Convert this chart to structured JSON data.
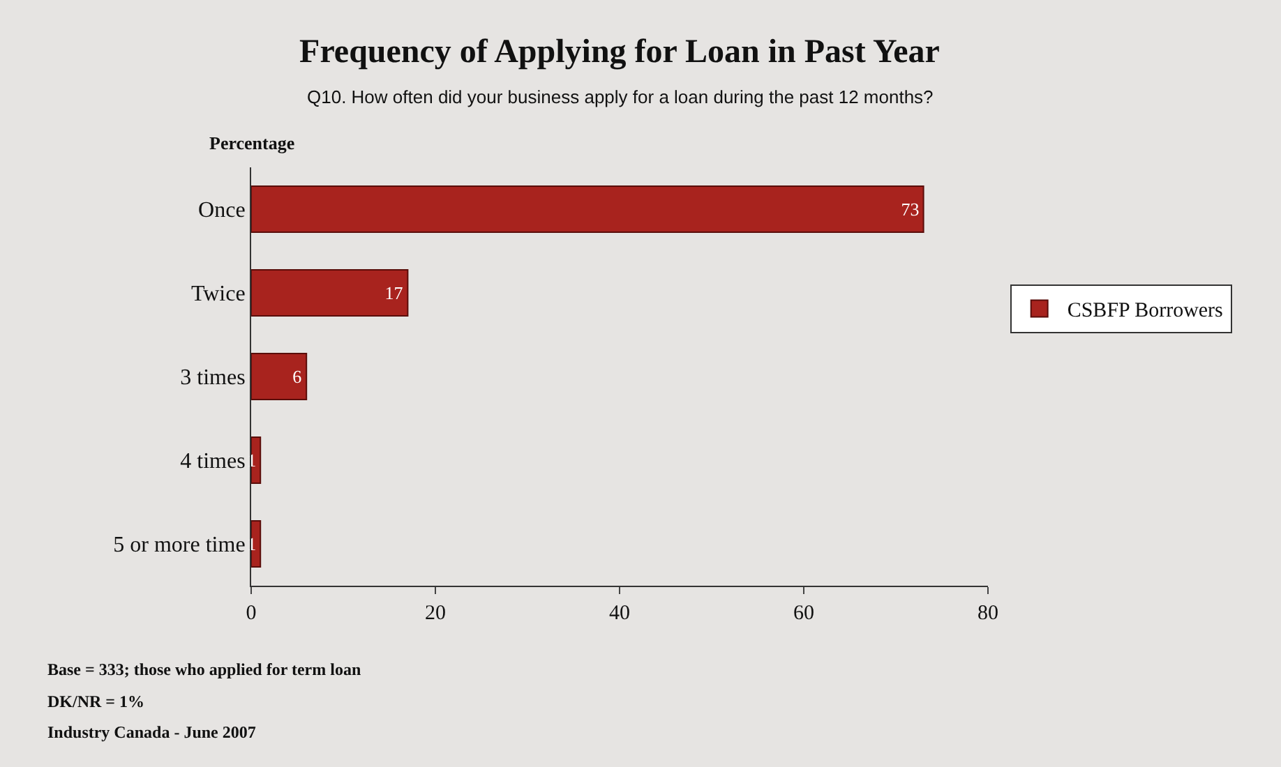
{
  "chart_data": {
    "type": "bar",
    "orientation": "horizontal",
    "title": "Frequency of Applying for Loan in Past Year",
    "subtitle": "Q10. How often did your business apply for a loan during the past 12 months?",
    "xlabel": "Percentage",
    "categories": [
      "Once",
      "Twice",
      "3 times",
      "4 times",
      "5 or more time"
    ],
    "series": [
      {
        "name": "CSBFP Borrowers",
        "color": "#a8231e",
        "values": [
          73,
          17,
          6,
          1,
          1
        ]
      }
    ],
    "xlim": [
      0,
      80
    ],
    "xticks": [
      0,
      20,
      40,
      60,
      80
    ],
    "grid": false,
    "legend": "right",
    "data_labels": true,
    "annotations": [
      "Base = 333; those who applied for term loan",
      "DK/NR = 1%",
      "Industry Canada - June 2007"
    ]
  }
}
